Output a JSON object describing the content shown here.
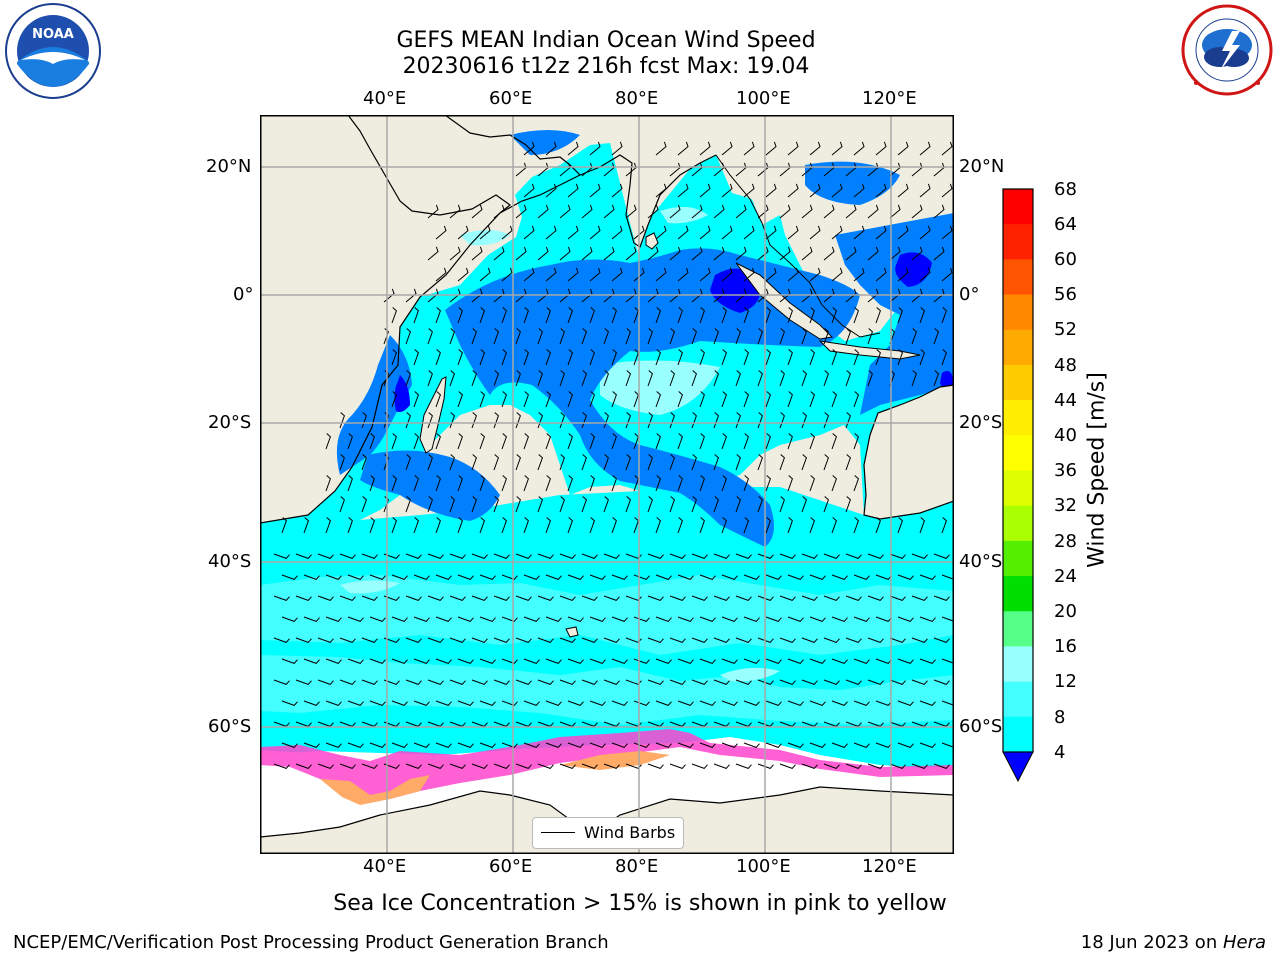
{
  "title": {
    "line1": "GEFS MEAN Indian Ocean Wind Speed",
    "line2": "20230616 t12z 216h fcst   Max: 19.04"
  },
  "map": {
    "lon_ticks": [
      "40°E",
      "60°E",
      "80°E",
      "100°E",
      "120°E"
    ],
    "lat_ticks": [
      "20°N",
      "0°",
      "20°S",
      "40°S",
      "60°S"
    ],
    "legend_label": "Wind Barbs",
    "colors": {
      "land": "#efede0",
      "ice": "#ffffff",
      "ocean_8_12": "#00ffff",
      "ocean_12_16": "#44ffff",
      "ocean_16_20": "#99ffff",
      "ocean_4_8": "#0080ff",
      "ocean_lt4": "#0000ff",
      "ice_pink": "#ff44cc",
      "ice_orange": "#ffaa66"
    }
  },
  "colorbar": {
    "label": "Wind Speed [m/s]",
    "ticks": [
      "68",
      "64",
      "60",
      "56",
      "52",
      "48",
      "44",
      "40",
      "36",
      "32",
      "28",
      "24",
      "20",
      "16",
      "12",
      "8",
      "4"
    ],
    "colors": [
      "#ff0000",
      "#ff2200",
      "#ff5500",
      "#ff8800",
      "#ffaa00",
      "#ffcc00",
      "#ffee00",
      "#ffff00",
      "#ddff00",
      "#aaff00",
      "#55ee00",
      "#00dd00",
      "#55ff88",
      "#99ffff",
      "#44ffff",
      "#00ffff",
      "#0080ff"
    ],
    "under_color": "#0000ff"
  },
  "caption": "Sea Ice Concentration > 15% is shown in pink to yellow",
  "footer": {
    "left": "NCEP/EMC/Verification Post Processing Product Generation Branch",
    "right_prefix": "18 Jun 2023 on ",
    "right_host": "Hera"
  }
}
